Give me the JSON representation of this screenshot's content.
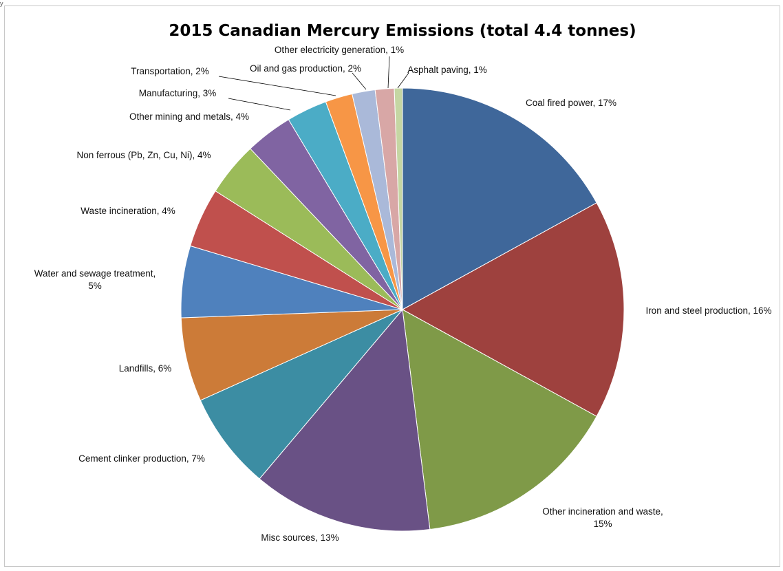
{
  "page": {
    "corner_mark": "y"
  },
  "chart_data": {
    "type": "pie",
    "title": "2015 Canadian Mercury Emissions (total 4.4 tonnes)",
    "start_angle_deg": 0,
    "direction": "clockwise",
    "slices": [
      {
        "name": "Coal fired power",
        "pct_label": "17%",
        "value": 17.2,
        "color": "#3F679A"
      },
      {
        "name": "Iron and steel production",
        "pct_label": "16%",
        "value": 16.2,
        "color": "#9E413E"
      },
      {
        "name": "Other incineration and waste",
        "pct_label": "15%",
        "value": 15.2,
        "color": "#7F9A48"
      },
      {
        "name": "Misc sources",
        "pct_label": "13%",
        "value": 13.3,
        "color": "#695185"
      },
      {
        "name": "Cement clinker production",
        "pct_label": "7%",
        "value": 7.2,
        "color": "#3C8DA3"
      },
      {
        "name": "Landfills",
        "pct_label": "6%",
        "value": 6.2,
        "color": "#CC7B38"
      },
      {
        "name": "Water and sewage treatment",
        "pct_label": "5%",
        "value": 5.3,
        "color": "#4F81BD"
      },
      {
        "name": "Waste incineration",
        "pct_label": "4%",
        "value": 4.4,
        "color": "#C0504D"
      },
      {
        "name": "Non ferrous (Pb, Zn, Cu, Ni)",
        "pct_label": "4%",
        "value": 4.0,
        "color": "#9BBB59"
      },
      {
        "name": "Other mining and metals",
        "pct_label": "4%",
        "value": 3.5,
        "color": "#8064A2"
      },
      {
        "name": "Manufacturing",
        "pct_label": "3%",
        "value": 3.0,
        "color": "#4BACC6"
      },
      {
        "name": "Transportation",
        "pct_label": "2%",
        "value": 2.0,
        "color": "#F79646"
      },
      {
        "name": "Oil and gas production",
        "pct_label": "2%",
        "value": 1.7,
        "color": "#AAB9D9"
      },
      {
        "name": "Other electricity generation",
        "pct_label": "1%",
        "value": 1.4,
        "color": "#D8A7A6"
      },
      {
        "name": "Asphalt paving",
        "pct_label": "1%",
        "value": 0.6,
        "color": "#C5D6A3"
      }
    ],
    "legend": "none",
    "data_labels": "outside with leader lines"
  }
}
